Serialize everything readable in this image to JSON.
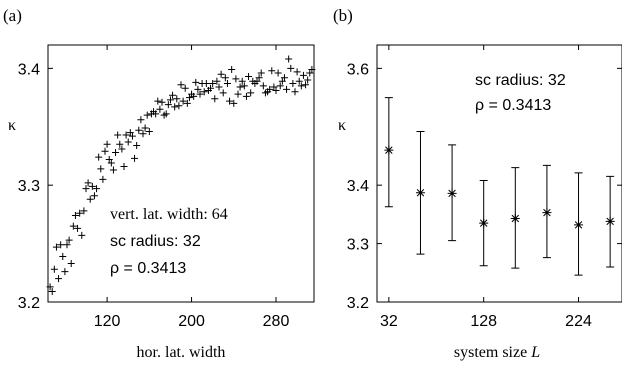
{
  "chart_data": [
    {
      "panel_label": "(a)",
      "type": "scatter",
      "xlabel": "hor. lat. width",
      "ylabel": "κ",
      "xlim": [
        64,
        316
      ],
      "ylim": [
        3.2,
        3.42
      ],
      "xticks": [
        120,
        200,
        280
      ],
      "yticks": [
        3.2,
        3.3,
        3.4
      ],
      "xtick_labels": [
        "120",
        "200",
        "280"
      ],
      "ytick_labels": [
        "3.2",
        "3.3",
        "3.4"
      ],
      "annotations": [
        "vert. lat. width: 64",
        "sc radius: 32",
        "ρ = 0.3413"
      ],
      "marker": "plus",
      "x": [
        66,
        68,
        70,
        72,
        74,
        76,
        78,
        80,
        82,
        84,
        86,
        88,
        90,
        92,
        94,
        96,
        98,
        100,
        102,
        104,
        106,
        108,
        110,
        112,
        114,
        116,
        118,
        120,
        122,
        124,
        126,
        128,
        130,
        132,
        134,
        136,
        138,
        140,
        142,
        144,
        146,
        148,
        150,
        152,
        154,
        156,
        158,
        160,
        162,
        164,
        166,
        168,
        170,
        172,
        174,
        176,
        178,
        180,
        182,
        184,
        186,
        188,
        190,
        192,
        194,
        196,
        198,
        200,
        202,
        204,
        206,
        208,
        210,
        212,
        214,
        216,
        218,
        220,
        222,
        224,
        226,
        228,
        230,
        232,
        234,
        236,
        238,
        240,
        242,
        244,
        246,
        248,
        250,
        252,
        254,
        256,
        258,
        260,
        262,
        264,
        266,
        268,
        270,
        272,
        274,
        276,
        278,
        280,
        282,
        284,
        286,
        288,
        290,
        292,
        294,
        296,
        298,
        300,
        302,
        304,
        306,
        308,
        310,
        312,
        314
      ],
      "y": [
        3.213,
        3.209,
        3.228,
        3.247,
        3.22,
        3.249,
        3.239,
        3.226,
        3.249,
        3.253,
        3.233,
        3.265,
        3.274,
        3.263,
        3.276,
        3.257,
        3.278,
        3.297,
        3.302,
        3.288,
        3.299,
        3.291,
        3.297,
        3.324,
        3.314,
        3.305,
        3.329,
        3.335,
        3.322,
        3.319,
        3.313,
        3.328,
        3.343,
        3.335,
        3.331,
        3.316,
        3.343,
        3.337,
        3.345,
        3.342,
        3.323,
        3.334,
        3.347,
        3.356,
        3.344,
        3.349,
        3.36,
        3.346,
        3.361,
        3.363,
        3.361,
        3.372,
        3.365,
        3.371,
        3.36,
        3.361,
        3.369,
        3.373,
        3.377,
        3.367,
        3.374,
        3.368,
        3.386,
        3.372,
        3.383,
        3.37,
        3.375,
        3.378,
        3.376,
        3.388,
        3.382,
        3.378,
        3.387,
        3.38,
        3.387,
        3.381,
        3.383,
        3.387,
        3.374,
        3.389,
        3.384,
        3.395,
        3.379,
        3.392,
        3.387,
        3.372,
        3.399,
        3.37,
        3.391,
        3.378,
        3.384,
        3.389,
        3.385,
        3.376,
        3.393,
        3.379,
        3.389,
        3.387,
        3.389,
        3.392,
        3.396,
        3.385,
        3.379,
        3.38,
        3.382,
        3.398,
        3.384,
        3.381,
        3.396,
        3.385,
        3.389,
        3.392,
        3.382,
        3.408,
        3.4,
        3.387,
        3.38,
        3.397,
        3.389,
        3.385,
        3.394,
        3.386,
        3.39,
        3.396,
        3.399
      ]
    },
    {
      "panel_label": "(b)",
      "type": "scatter",
      "xlabel": "system size ",
      "xlabel_var": "L",
      "ylabel": "κ",
      "xlim": [
        20,
        268
      ],
      "ylim": [
        3.2,
        3.64
      ],
      "xticks": [
        32,
        128,
        224
      ],
      "yticks": [
        3.2,
        3.3,
        3.4,
        3.6
      ],
      "xtick_labels": [
        "32",
        "128",
        "224"
      ],
      "ytick_labels": [
        "3.2",
        "3.3",
        "3.4",
        "3.6"
      ],
      "annotations": [
        "sc radius: 32",
        "ρ = 0.3413"
      ],
      "marker": "asterisk",
      "x": [
        32,
        64,
        96,
        128,
        160,
        192,
        224,
        256
      ],
      "y": [
        3.46,
        3.387,
        3.386,
        3.335,
        3.343,
        3.353,
        3.332,
        3.338
      ],
      "yerr_low": [
        3.363,
        3.282,
        3.305,
        3.262,
        3.258,
        3.276,
        3.246,
        3.26
      ],
      "yerr_high": [
        3.55,
        3.492,
        3.469,
        3.408,
        3.43,
        3.434,
        3.421,
        3.415
      ]
    }
  ]
}
